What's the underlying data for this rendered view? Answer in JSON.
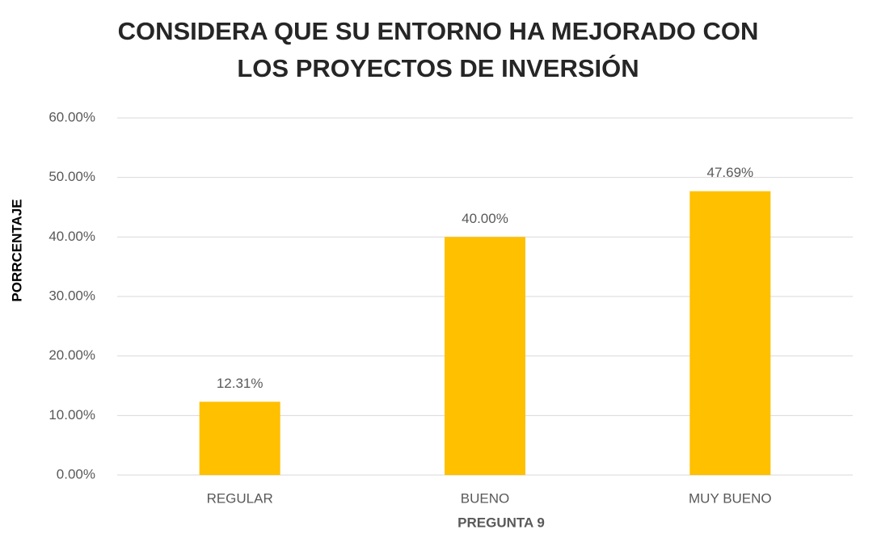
{
  "chart_data": {
    "type": "bar",
    "title": "CONSIDERA QUE SU ENTORNO HA MEJORADO CON LOS PROYECTOS DE INVERSIÓN",
    "x_label": "PREGUNTA 9",
    "y_label": "PORRCENTAJE",
    "categories": [
      "REGULAR",
      "BUENO",
      "MUY BUENO"
    ],
    "values": [
      12.31,
      40.0,
      47.69
    ],
    "value_labels": [
      "12.31%",
      "40.00%",
      "47.69%"
    ],
    "color": "#ffc000",
    "ylim": [
      0,
      60
    ],
    "yticks": [
      {
        "value": 0,
        "label": "0.00%"
      },
      {
        "value": 10,
        "label": "10.00%"
      },
      {
        "value": 20,
        "label": "20.00%"
      },
      {
        "value": 30,
        "label": "30.00%"
      },
      {
        "value": 40,
        "label": "40.00%"
      },
      {
        "value": 50,
        "label": "50.00%"
      },
      {
        "value": 60,
        "label": "60.00%"
      }
    ],
    "grid": true
  }
}
